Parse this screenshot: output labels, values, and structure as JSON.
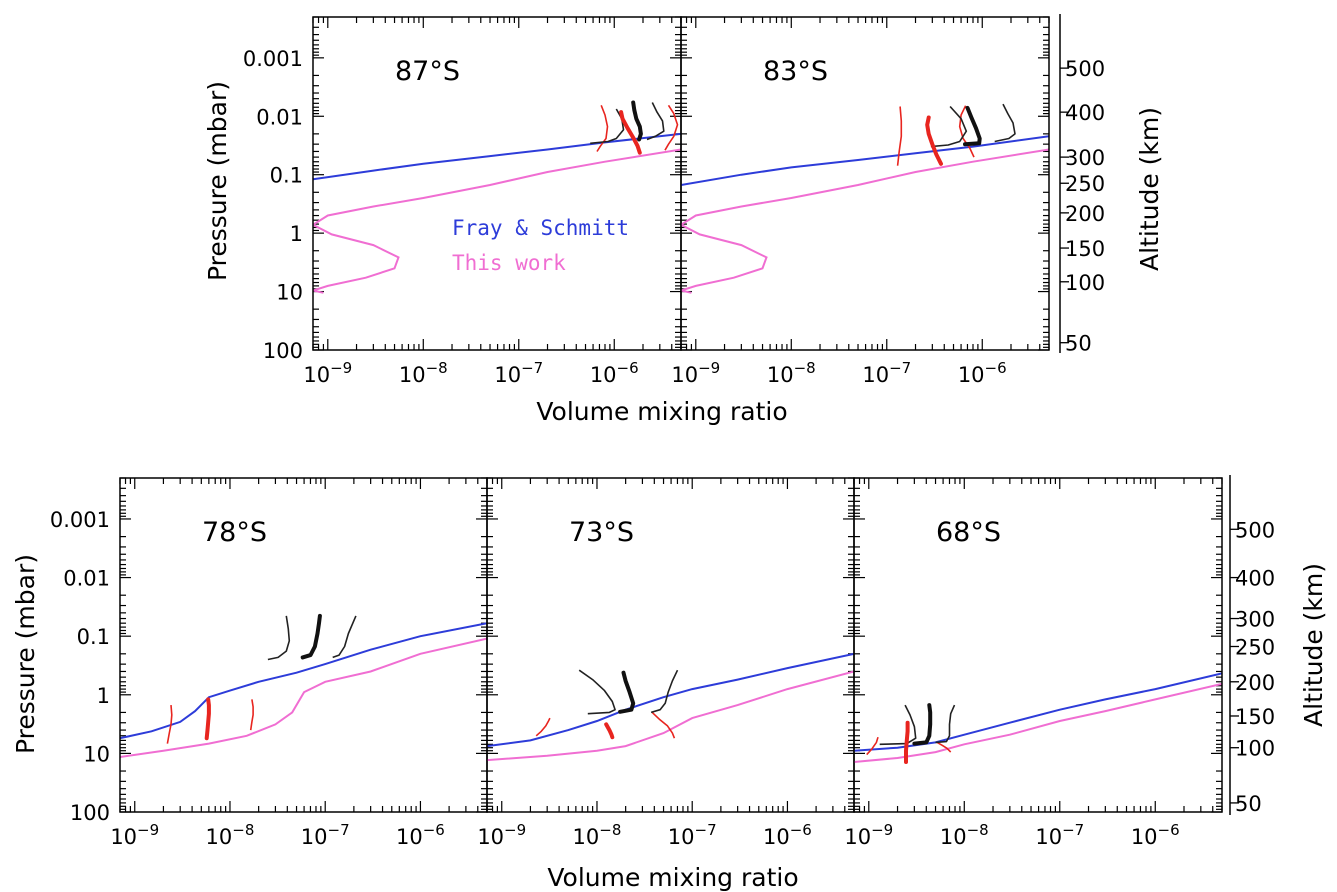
{
  "figure": {
    "xlabel": "Volume mixing ratio",
    "ylabel": "Pressure (mbar)",
    "y2label": "Altitude (km)",
    "legend": [
      {
        "label": "Fray & Schmitt",
        "color": "#2d3cd9"
      },
      {
        "label": "This work",
        "color": "#f06ed2"
      }
    ]
  },
  "chart_data": [
    {
      "type": "line",
      "title": "87°S",
      "xscale": "log",
      "yscale": "log",
      "xlim": [
        7e-10,
        5e-06
      ],
      "ylim": [
        100,
        0.0002
      ],
      "xticks": [
        {
          "v": 1e-09,
          "e": "−9"
        },
        {
          "v": 1e-08,
          "e": "−8"
        },
        {
          "v": 1e-07,
          "e": "−7"
        },
        {
          "v": 1e-06,
          "e": "−6"
        }
      ],
      "yticks": [
        "0.001",
        "0.01",
        "0.1",
        "1",
        "10",
        "100"
      ],
      "series": [
        {
          "name": "Fray & Schmitt",
          "color": "#2d3cd9",
          "x": [
            7e-10,
            3e-09,
            1e-08,
            5e-08,
            2e-07,
            8e-07,
            5e-06
          ],
          "y": [
            0.12,
            0.085,
            0.065,
            0.048,
            0.037,
            0.028,
            0.02
          ]
        },
        {
          "name": "This work",
          "color": "#f06ed2",
          "x": [
            9e-10,
            7e-10,
            1e-09,
            2.5e-09,
            5e-09,
            5.5e-09,
            3e-09,
            1.1e-09,
            7e-10,
            1e-09,
            3e-09,
            1e-08,
            5e-08,
            2e-07,
            8e-07,
            5e-06
          ],
          "y": [
            10.5,
            9.6,
            8,
            5.8,
            4,
            2.6,
            1.6,
            1.05,
            0.72,
            0.5,
            0.35,
            0.25,
            0.15,
            0.09,
            0.06,
            0.037
          ]
        }
      ],
      "profiles_thin": [
        {
          "color": "#e8251f",
          "x": [
            6.6e-07,
            7.2e-07,
            8.2e-07,
            8.5e-07,
            8e-07,
            7.3e-07
          ],
          "y": [
            0.04,
            0.032,
            0.024,
            0.015,
            0.0095,
            0.0065
          ]
        },
        {
          "color": "#e8251f",
          "x": [
            3.4e-06,
            3.7e-06,
            4.2e-06,
            4.6e-06,
            4.2e-06,
            3.7e-06
          ],
          "y": [
            0.038,
            0.03,
            0.022,
            0.014,
            0.009,
            0.0065
          ]
        },
        {
          "color": "#222222",
          "x": [
            5.6e-07,
            8.6e-07,
            1.05e-06,
            1.25e-06,
            1.2e-06,
            1.05e-06
          ],
          "y": [
            0.029,
            0.027,
            0.024,
            0.017,
            0.011,
            0.0075
          ]
        },
        {
          "color": "#222222",
          "x": [
            2.2e-06,
            2.7e-06,
            3.3e-06,
            3.2e-06,
            2.8e-06,
            2.5e-06
          ],
          "y": [
            0.025,
            0.022,
            0.018,
            0.012,
            0.0085,
            0.0058
          ]
        }
      ],
      "profiles_thick": [
        {
          "color": "#e8251f",
          "x": [
            1.85e-06,
            1.75e-06,
            1.6e-06,
            1.38e-06,
            1.22e-06,
            1.18e-06
          ],
          "y": [
            0.042,
            0.032,
            0.024,
            0.016,
            0.011,
            0.0085
          ]
        },
        {
          "color": "#111111",
          "x": [
            1.82e-06,
            1.9e-06,
            1.85e-06,
            1.7e-06,
            1.62e-06,
            1.58e-06
          ],
          "y": [
            0.025,
            0.02,
            0.015,
            0.011,
            0.0078,
            0.0058
          ]
        }
      ]
    },
    {
      "type": "line",
      "title": "83°S",
      "xscale": "log",
      "yscale": "log",
      "xlim": [
        7e-10,
        5e-06
      ],
      "ylim": [
        100,
        0.0002
      ],
      "xticks": [
        {
          "v": 1e-09,
          "e": "−9"
        },
        {
          "v": 1e-08,
          "e": "−8"
        },
        {
          "v": 1e-07,
          "e": "−7"
        },
        {
          "v": 1e-06,
          "e": "−6"
        }
      ],
      "series": [
        {
          "name": "Fray & Schmitt",
          "color": "#2d3cd9",
          "x": [
            7e-10,
            3e-09,
            1e-08,
            5e-08,
            2e-07,
            8e-07,
            5e-06
          ],
          "y": [
            0.15,
            0.1,
            0.075,
            0.056,
            0.043,
            0.033,
            0.022
          ]
        },
        {
          "name": "This work",
          "color": "#f06ed2",
          "x": [
            9e-10,
            7e-10,
            1e-09,
            2.5e-09,
            5e-09,
            5.5e-09,
            3e-09,
            1.1e-09,
            7e-10,
            1e-09,
            3e-09,
            1e-08,
            5e-08,
            2e-07,
            8e-07,
            5e-06
          ],
          "y": [
            10.5,
            9.6,
            8,
            5.8,
            4,
            2.6,
            1.6,
            1.05,
            0.72,
            0.5,
            0.35,
            0.25,
            0.15,
            0.09,
            0.06,
            0.037
          ]
        }
      ],
      "profiles_thin": [
        {
          "color": "#e8251f",
          "x": [
            1.3e-07,
            1.35e-07,
            1.42e-07,
            1.42e-07,
            1.38e-07
          ],
          "y": [
            0.07,
            0.04,
            0.022,
            0.012,
            0.0068
          ]
        },
        {
          "color": "#e8251f",
          "x": [
            8.2e-07,
            7.4e-07,
            6.3e-07,
            5.8e-07,
            6e-07,
            6.7e-07
          ],
          "y": [
            0.05,
            0.035,
            0.024,
            0.015,
            0.0095,
            0.0066
          ]
        },
        {
          "color": "#222222",
          "x": [
            2.9e-07,
            4.4e-07,
            5.8e-07,
            6.8e-07,
            6e-07,
            4.6e-07
          ],
          "y": [
            0.033,
            0.031,
            0.027,
            0.018,
            0.011,
            0.0068
          ]
        },
        {
          "color": "#222222",
          "x": [
            1.35e-06,
            1.9e-06,
            2.2e-06,
            2.1e-06,
            1.85e-06,
            1.65e-06
          ],
          "y": [
            0.027,
            0.024,
            0.02,
            0.013,
            0.009,
            0.0062
          ]
        }
      ],
      "profiles_thick": [
        {
          "color": "#e8251f",
          "x": [
            3.7e-07,
            3.3e-07,
            3e-07,
            2.75e-07,
            2.65e-07,
            2.75e-07
          ],
          "y": [
            0.065,
            0.045,
            0.03,
            0.02,
            0.014,
            0.0105
          ]
        },
        {
          "color": "#111111",
          "x": [
            6.6e-07,
            9.3e-07,
            9.4e-07,
            8.6e-07,
            7.7e-07,
            7e-07
          ],
          "y": [
            0.03,
            0.029,
            0.024,
            0.016,
            0.0105,
            0.0072
          ]
        }
      ]
    },
    {
      "type": "line",
      "title": "78°S",
      "xscale": "log",
      "yscale": "log",
      "xlim": [
        7e-10,
        5e-06
      ],
      "ylim": [
        100,
        0.0002
      ],
      "xticks": [
        {
          "v": 1e-09,
          "e": "−9"
        },
        {
          "v": 1e-08,
          "e": "−8"
        },
        {
          "v": 1e-07,
          "e": "−7"
        },
        {
          "v": 1e-06,
          "e": "−6"
        }
      ],
      "yticks": [
        "0.001",
        "0.01",
        "0.1",
        "1",
        "10",
        "100"
      ],
      "series": [
        {
          "name": "Fray & Schmitt",
          "color": "#2d3cd9",
          "x": [
            7e-10,
            1.5e-09,
            3e-09,
            4.3e-09,
            6e-09,
            1e-08,
            2e-08,
            5e-08,
            1e-07,
            3e-07,
            1e-06,
            5e-06
          ],
          "y": [
            5.5,
            4.2,
            2.9,
            1.9,
            1.1,
            0.85,
            0.6,
            0.42,
            0.3,
            0.17,
            0.1,
            0.06
          ]
        },
        {
          "name": "This work",
          "color": "#f06ed2",
          "x": [
            7e-10,
            2e-09,
            6e-09,
            1.5e-08,
            3e-08,
            4.5e-08,
            6e-08,
            1e-07,
            3e-07,
            1e-06,
            5e-06
          ],
          "y": [
            11.5,
            9,
            6.8,
            5,
            3.2,
            2,
            0.9,
            0.6,
            0.4,
            0.2,
            0.11
          ]
        }
      ],
      "profiles_thin": [
        {
          "color": "#e8251f",
          "x": [
            2.2e-09,
            2.3e-09,
            2.4e-09,
            2.45e-09,
            2.4e-09
          ],
          "y": [
            6.8,
            4.6,
            3.2,
            2.2,
            1.5
          ]
        },
        {
          "color": "#e8251f",
          "x": [
            1.65e-08,
            1.7e-08,
            1.75e-08,
            1.75e-08,
            1.7e-08
          ],
          "y": [
            4,
            2.9,
            2.2,
            1.6,
            1.2
          ]
        },
        {
          "color": "#222222",
          "x": [
            2.5e-08,
            3.2e-08,
            3.9e-08,
            4.2e-08,
            4.1e-08,
            3.9e-08
          ],
          "y": [
            0.25,
            0.23,
            0.18,
            0.12,
            0.075,
            0.045
          ]
        },
        {
          "color": "#222222",
          "x": [
            1.2e-07,
            1.4e-07,
            1.6e-07,
            1.75e-07,
            1.95e-07,
            2.1e-07
          ],
          "y": [
            0.23,
            0.21,
            0.15,
            0.09,
            0.06,
            0.045
          ]
        }
      ],
      "profiles_thick": [
        {
          "color": "#e8251f",
          "x": [
            5.7e-09,
            5.8e-09,
            5.9e-09,
            6e-09,
            6e-09,
            5.9e-09
          ],
          "y": [
            5.5,
            4,
            2.9,
            2.1,
            1.5,
            1.2
          ]
        },
        {
          "color": "#111111",
          "x": [
            5.8e-08,
            7e-08,
            7.8e-08,
            8.3e-08,
            8.6e-08,
            8.8e-08
          ],
          "y": [
            0.23,
            0.21,
            0.15,
            0.09,
            0.06,
            0.045
          ]
        }
      ]
    },
    {
      "type": "line",
      "title": "73°S",
      "xscale": "log",
      "yscale": "log",
      "xlim": [
        7e-10,
        5e-06
      ],
      "ylim": [
        100,
        0.0002
      ],
      "xticks": [
        {
          "v": 1e-09,
          "e": "−9"
        },
        {
          "v": 1e-08,
          "e": "−8"
        },
        {
          "v": 1e-07,
          "e": "−7"
        },
        {
          "v": 1e-06,
          "e": "−6"
        }
      ],
      "series": [
        {
          "name": "Fray & Schmitt",
          "color": "#2d3cd9",
          "x": [
            7e-10,
            2e-09,
            5e-09,
            1e-08,
            2e-08,
            5e-08,
            1e-07,
            3e-07,
            1e-06,
            5e-06
          ],
          "y": [
            7.5,
            6,
            4,
            2.8,
            1.8,
            1.1,
            0.8,
            0.55,
            0.35,
            0.2
          ]
        },
        {
          "name": "This work",
          "color": "#f06ed2",
          "x": [
            7e-10,
            3e-09,
            1e-08,
            2e-08,
            5e-08,
            1e-07,
            3e-07,
            1e-06,
            5e-06
          ],
          "y": [
            13,
            11,
            9,
            7.5,
            4.5,
            2.5,
            1.5,
            0.8,
            0.4
          ]
        }
      ],
      "profiles_thin": [
        {
          "color": "#e8251f",
          "x": [
            2.3e-09,
            2.6e-09,
            2.9e-09,
            3.1e-09,
            3.2e-09
          ],
          "y": [
            5,
            4.2,
            3.4,
            2.8,
            2.5
          ]
        },
        {
          "color": "#e8251f",
          "x": [
            6.5e-08,
            6.2e-08,
            5.5e-08,
            4.5e-08,
            3.8e-08
          ],
          "y": [
            5.5,
            4.5,
            3.4,
            2.6,
            2
          ]
        },
        {
          "color": "#222222",
          "x": [
            8e-09,
            1.35e-08,
            1.55e-08,
            1.45e-08,
            1.2e-08,
            9e-09,
            6.5e-09
          ],
          "y": [
            2.1,
            2,
            1.8,
            1.3,
            0.85,
            0.55,
            0.38
          ]
        },
        {
          "color": "#222222",
          "x": [
            3.7e-08,
            4.6e-08,
            5.2e-08,
            5.6e-08,
            6.2e-08,
            7e-08
          ],
          "y": [
            2,
            1.8,
            1.4,
            0.9,
            0.58,
            0.38
          ]
        }
      ],
      "profiles_thick": [
        {
          "color": "#e8251f",
          "x": [
            1.25e-08,
            1.35e-08,
            1.42e-08,
            1.45e-08
          ],
          "y": [
            3.2,
            4,
            4.8,
            5.3
          ]
        },
        {
          "color": "#111111",
          "x": [
            1.75e-08,
            2.3e-08,
            2.4e-08,
            2.2e-08,
            2e-08,
            1.9e-08
          ],
          "y": [
            1.95,
            1.8,
            1.4,
            0.9,
            0.58,
            0.42
          ]
        }
      ]
    },
    {
      "type": "line",
      "title": "68°S",
      "xscale": "log",
      "yscale": "log",
      "xlim": [
        7e-10,
        5e-06
      ],
      "ylim": [
        100,
        0.0002
      ],
      "xticks": [
        {
          "v": 1e-09,
          "e": "−9"
        },
        {
          "v": 1e-08,
          "e": "−8"
        },
        {
          "v": 1e-07,
          "e": "−7"
        },
        {
          "v": 1e-06,
          "e": "−6"
        }
      ],
      "series": [
        {
          "name": "Fray & Schmitt",
          "color": "#2d3cd9",
          "x": [
            7e-10,
            2e-09,
            5e-09,
            1e-08,
            3e-08,
            1e-07,
            3e-07,
            1e-06,
            5e-06
          ],
          "y": [
            9,
            8,
            6.5,
            4.8,
            3,
            1.8,
            1.2,
            0.8,
            0.43
          ]
        },
        {
          "name": "This work",
          "color": "#f06ed2",
          "x": [
            7e-10,
            2e-09,
            5e-09,
            1e-08,
            3e-08,
            1e-07,
            3e-07,
            1e-06,
            5e-06
          ],
          "y": [
            14,
            12,
            9.5,
            7,
            4.8,
            2.8,
            1.9,
            1.2,
            0.65
          ]
        }
      ],
      "profiles_thin": [
        {
          "color": "#e8251f",
          "x": [
            1.25e-09,
            1.2e-09,
            1.07e-09,
            9.5e-10
          ],
          "y": [
            5.3,
            6.5,
            8.5,
            10.5
          ]
        },
        {
          "color": "#e8251f",
          "x": [
            5.2e-09,
            5.9e-09,
            6.6e-09,
            7.2e-09
          ],
          "y": [
            6.5,
            7.3,
            8.2,
            9.5
          ]
        },
        {
          "color": "#222222",
          "x": [
            1.3e-09,
            2.5e-09,
            3.1e-09,
            3e-09,
            2.7e-09,
            2.4e-09
          ],
          "y": [
            7,
            6.8,
            5.5,
            3.5,
            2.2,
            1.5
          ]
        },
        {
          "color": "#222222",
          "x": [
            5e-09,
            6.5e-09,
            7e-09,
            7e-09,
            7.2e-09,
            7.9e-09
          ],
          "y": [
            6.5,
            6.3,
            5,
            3.2,
            2.1,
            1.5
          ]
        }
      ],
      "profiles_thick": [
        {
          "color": "#e8251f",
          "x": [
            2.45e-09,
            2.45e-09,
            2.5e-09,
            2.55e-09,
            2.55e-09
          ],
          "y": [
            14,
            9,
            6,
            4.2,
            3
          ]
        },
        {
          "color": "#111111",
          "x": [
            3e-09,
            4e-09,
            4.3e-09,
            4.4e-09,
            4.4e-09,
            4.3e-09
          ],
          "y": [
            6.8,
            6.5,
            5,
            3.2,
            2,
            1.5
          ]
        }
      ]
    }
  ],
  "altitude_axes": [
    {
      "ticks": [
        {
          "label": "500",
          "p": 0.0015
        },
        {
          "label": "400",
          "p": 0.0085
        },
        {
          "label": "300",
          "p": 0.05
        },
        {
          "label": "250",
          "p": 0.14
        },
        {
          "label": "200",
          "p": 0.45
        },
        {
          "label": "150",
          "p": 1.8
        },
        {
          "label": "100",
          "p": 6.8
        },
        {
          "label": "50",
          "p": 75
        }
      ]
    },
    {
      "ticks": [
        {
          "label": "500",
          "p": 0.0015
        },
        {
          "label": "400",
          "p": 0.01
        },
        {
          "label": "300",
          "p": 0.05
        },
        {
          "label": "250",
          "p": 0.15
        },
        {
          "label": "200",
          "p": 0.6
        },
        {
          "label": "150",
          "p": 2.3
        },
        {
          "label": "100",
          "p": 8
        },
        {
          "label": "50",
          "p": 70
        }
      ]
    }
  ]
}
